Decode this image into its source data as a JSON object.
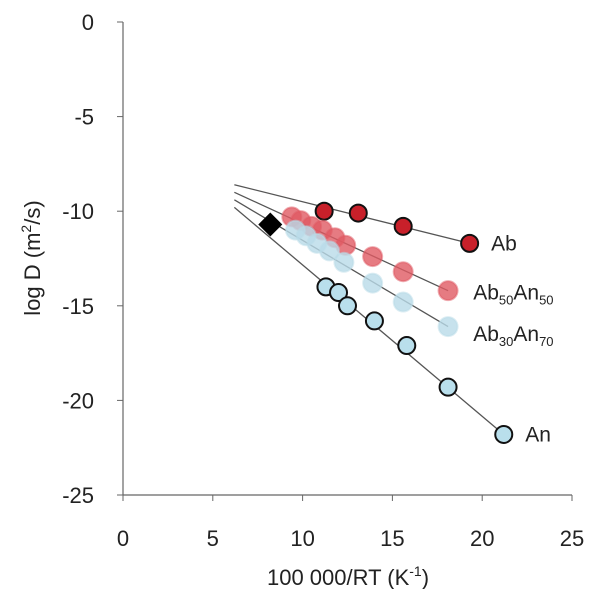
{
  "chart_data": {
    "type": "scatter",
    "xlabel": "100 000/RT (K",
    "xlabel_sup": "-1",
    "xlabel_end": ")",
    "ylabel": "log D (m",
    "ylabel_sup": "2",
    "ylabel_end": "/s)",
    "xlim": [
      0,
      25
    ],
    "ylim": [
      -25,
      0
    ],
    "x_ticks": [
      "0",
      "5",
      "10",
      "15",
      "20",
      "25"
    ],
    "y_ticks": [
      "0",
      "-5",
      "-10",
      "-15",
      "-20",
      "-25"
    ],
    "grid": false,
    "colors": {
      "Ab": "#c8202a",
      "Ab50An50": "#e05a63",
      "Ab30An70": "#b9dbe8",
      "An": "#b9dfec",
      "fit_line": "#555555",
      "marker_edge": "#111111",
      "diamond": "#000000"
    },
    "fit_lines": [
      {
        "series": "Ab",
        "x": [
          6.2,
          19.3
        ],
        "y": [
          -8.6,
          -11.7
        ]
      },
      {
        "series": "Ab50An50",
        "x": [
          6.2,
          18.1
        ],
        "y": [
          -9.0,
          -14.2
        ]
      },
      {
        "series": "Ab30An70",
        "x": [
          6.2,
          18.1
        ],
        "y": [
          -9.4,
          -16.1
        ]
      },
      {
        "series": "An",
        "x": [
          6.2,
          21.2
        ],
        "y": [
          -9.8,
          -21.8
        ]
      }
    ],
    "series": [
      {
        "name": "Ab",
        "label_main": "Ab",
        "label_sub1": "",
        "label_mid": "",
        "label_sub2": "",
        "label_x": 20.5,
        "label_y": -11.7,
        "style": "outlined",
        "points": [
          {
            "x": 11.2,
            "y": -10.0
          },
          {
            "x": 13.1,
            "y": -10.1
          },
          {
            "x": 15.6,
            "y": -10.8
          },
          {
            "x": 19.3,
            "y": -11.7
          }
        ]
      },
      {
        "name": "Ab50An50",
        "label_main": "Ab",
        "label_sub1": "50",
        "label_mid": "An",
        "label_sub2": "50",
        "label_x": 19.5,
        "label_y": -14.3,
        "style": "faded",
        "points": [
          {
            "x": 9.4,
            "y": -10.3
          },
          {
            "x": 9.9,
            "y": -10.5
          },
          {
            "x": 10.5,
            "y": -10.8
          },
          {
            "x": 11.1,
            "y": -11.0
          },
          {
            "x": 11.8,
            "y": -11.4
          },
          {
            "x": 12.4,
            "y": -11.8
          },
          {
            "x": 13.9,
            "y": -12.4
          },
          {
            "x": 15.6,
            "y": -13.2
          },
          {
            "x": 18.1,
            "y": -14.2
          }
        ]
      },
      {
        "name": "Ab30An70",
        "label_main": "Ab",
        "label_sub1": "30",
        "label_mid": "An",
        "label_sub2": "70",
        "label_x": 19.5,
        "label_y": -16.5,
        "style": "faded",
        "points": [
          {
            "x": 9.6,
            "y": -11.0
          },
          {
            "x": 10.2,
            "y": -11.3
          },
          {
            "x": 10.8,
            "y": -11.7
          },
          {
            "x": 11.5,
            "y": -12.1
          },
          {
            "x": 12.3,
            "y": -12.7
          },
          {
            "x": 13.9,
            "y": -13.8
          },
          {
            "x": 15.6,
            "y": -14.8
          },
          {
            "x": 18.1,
            "y": -16.1
          }
        ]
      },
      {
        "name": "An",
        "label_main": "An",
        "label_sub1": "",
        "label_mid": "",
        "label_sub2": "",
        "label_x": 22.4,
        "label_y": -21.8,
        "style": "outlined",
        "points": [
          {
            "x": 11.3,
            "y": -14.0
          },
          {
            "x": 12.0,
            "y": -14.3
          },
          {
            "x": 12.5,
            "y": -15.0
          },
          {
            "x": 14.0,
            "y": -15.8
          },
          {
            "x": 15.8,
            "y": -17.1
          },
          {
            "x": 18.1,
            "y": -19.3
          },
          {
            "x": 21.2,
            "y": -21.8
          }
        ]
      }
    ],
    "diamond": {
      "x": 8.2,
      "y": -10.7
    }
  }
}
